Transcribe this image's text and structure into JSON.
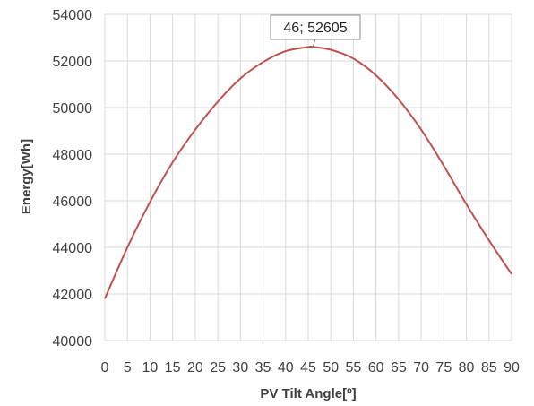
{
  "chart_data": {
    "type": "line",
    "xlabel": "PV Tilt Angle[º]",
    "ylabel": "Energy[Wh]",
    "xlim": [
      0,
      90
    ],
    "ylim": [
      40000,
      54000
    ],
    "x_ticks": [
      0,
      5,
      10,
      15,
      20,
      25,
      30,
      35,
      40,
      45,
      50,
      55,
      60,
      65,
      70,
      75,
      80,
      85,
      90
    ],
    "x_tick_labels": [
      "0",
      "5",
      "10",
      "15",
      "20",
      "25",
      "30",
      "35",
      "40",
      "45",
      "50",
      "55",
      "60",
      "65",
      "70",
      "75",
      "80",
      "85",
      "90"
    ],
    "y_ticks": [
      40000,
      42000,
      44000,
      46000,
      48000,
      50000,
      52000,
      54000
    ],
    "y_tick_labels": [
      "40000",
      "42000",
      "44000",
      "46000",
      "48000",
      "50000",
      "52000",
      "54000"
    ],
    "grid": true,
    "legend": "none",
    "series": [
      {
        "color": "#c0504d",
        "x": [
          0,
          5,
          10,
          15,
          20,
          25,
          30,
          35,
          40,
          45,
          46,
          50,
          55,
          60,
          65,
          70,
          75,
          80,
          85,
          90
        ],
        "y": [
          41800,
          44000,
          45950,
          47650,
          49050,
          50250,
          51250,
          51950,
          52420,
          52600,
          52605,
          52480,
          52100,
          51380,
          50350,
          49050,
          47500,
          45850,
          44300,
          42850
        ]
      }
    ],
    "annotation": {
      "x": 46,
      "y": 52605,
      "label": "46; 52605"
    }
  }
}
